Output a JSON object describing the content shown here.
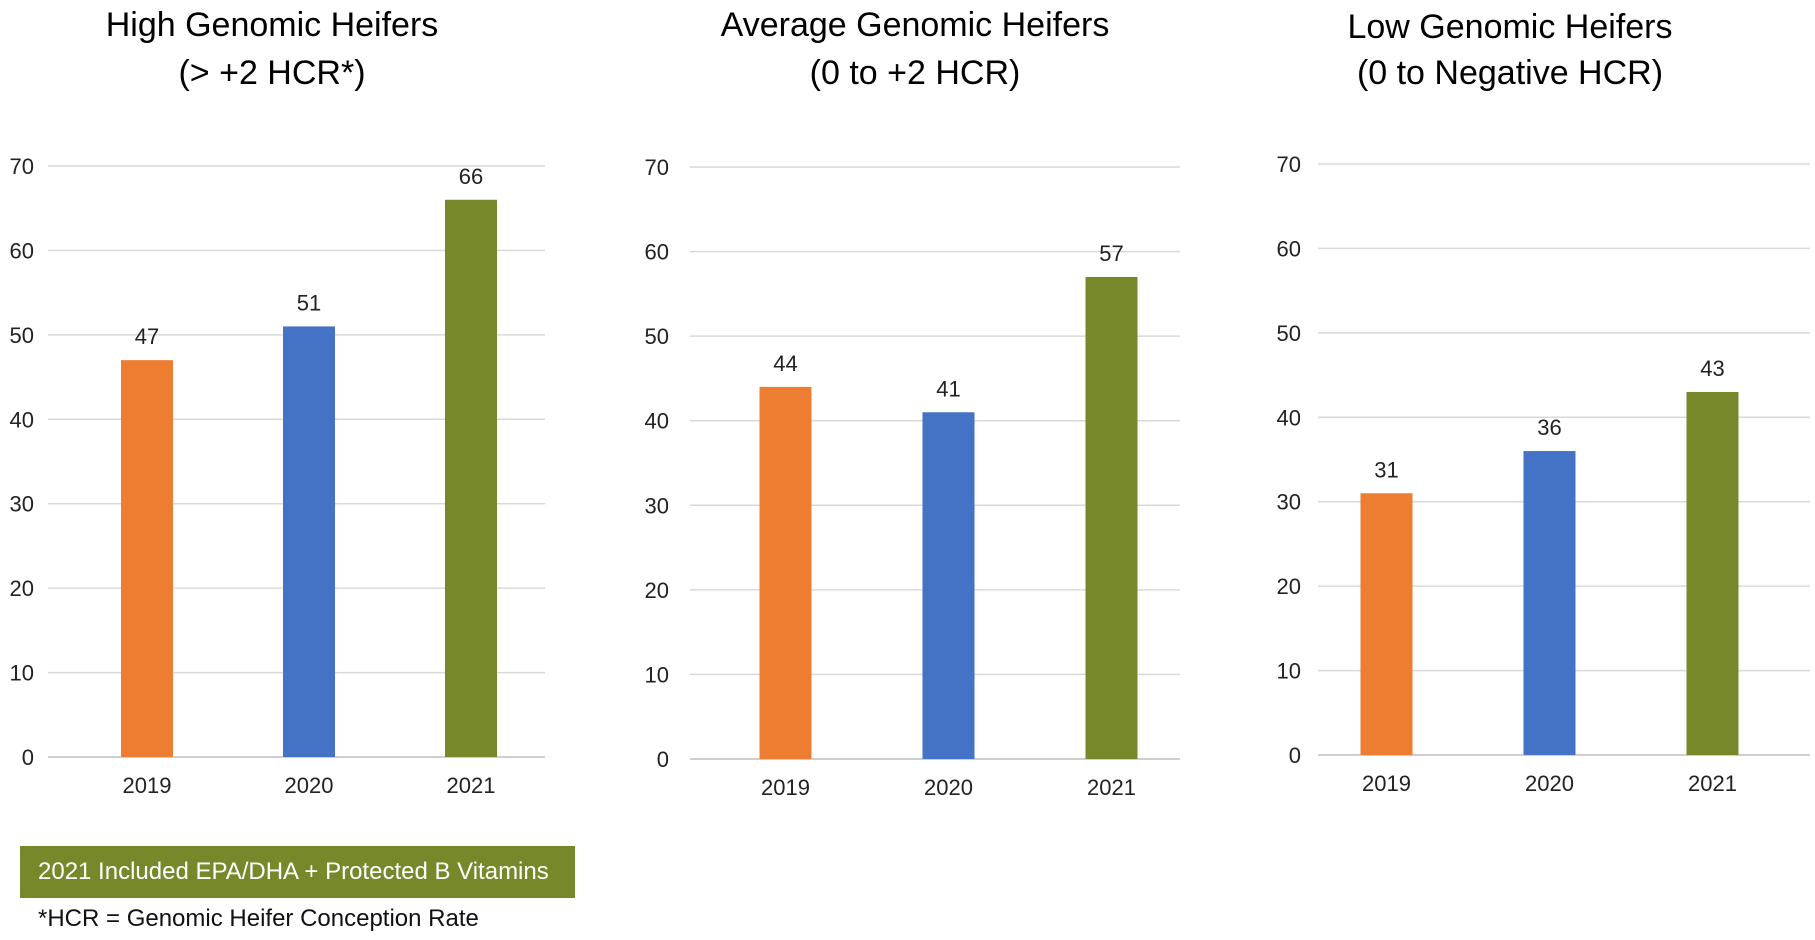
{
  "colors": {
    "2019": "#ED7D31",
    "2020": "#4472C4",
    "2021": "#77882A",
    "note_background": "#77882A"
  },
  "chart_data": [
    {
      "type": "bar",
      "title": [
        "High Genomic Heifers",
        "(> +2 HCR*)"
      ],
      "categories": [
        "2019",
        "2020",
        "2021"
      ],
      "values": [
        47,
        51,
        66
      ],
      "ylim": [
        0,
        70
      ],
      "yticks": [
        0,
        10,
        20,
        30,
        40,
        50,
        60,
        70
      ],
      "xlabel": "",
      "ylabel": "",
      "grid": true,
      "legend": "none"
    },
    {
      "type": "bar",
      "title": [
        "Average Genomic Heifers",
        "(0 to +2 HCR)"
      ],
      "categories": [
        "2019",
        "2020",
        "2021"
      ],
      "values": [
        44,
        41,
        57
      ],
      "ylim": [
        0,
        70
      ],
      "yticks": [
        0,
        10,
        20,
        30,
        40,
        50,
        60,
        70
      ],
      "xlabel": "",
      "ylabel": "",
      "grid": true,
      "legend": "none"
    },
    {
      "type": "bar",
      "title": [
        "Low Genomic Heifers",
        "(0 to Negative HCR)"
      ],
      "categories": [
        "2019",
        "2020",
        "2021"
      ],
      "values": [
        31,
        36,
        43
      ],
      "ylim": [
        0,
        70
      ],
      "yticks": [
        0,
        10,
        20,
        30,
        40,
        50,
        60,
        70
      ],
      "xlabel": "",
      "ylabel": "",
      "grid": true,
      "legend": "none"
    }
  ],
  "note": {
    "label": "2021 Included EPA/DHA + Protected B Vitamins"
  },
  "footnote": {
    "text": "*HCR = Genomic Heifer Conception Rate"
  }
}
